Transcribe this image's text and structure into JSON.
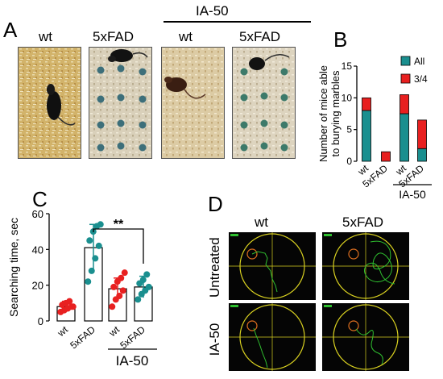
{
  "panel_a": {
    "letter": "A",
    "group_label": "IA-50",
    "photos": [
      {
        "label": "wt",
        "kind": "wt"
      },
      {
        "label": "5xFAD",
        "kind": "fad"
      },
      {
        "label": "wt",
        "kind": "wt"
      },
      {
        "label": "5xFAD",
        "kind": "fad"
      }
    ]
  },
  "panel_b": {
    "letter": "B",
    "group_label": "IA-50",
    "colors": {
      "all": "#1a8f8f",
      "three_quarter": "#e82020"
    }
  },
  "panel_c": {
    "letter": "C",
    "group_label": "IA-50",
    "significance": "**",
    "colors": {
      "wt": "#e82020",
      "fad": "#1a8f8f"
    }
  },
  "panel_d": {
    "letter": "D",
    "col_labels": [
      "wt",
      "5xFAD"
    ],
    "row_labels": [
      "Untreated",
      "IA-50"
    ],
    "colors": {
      "arena": "#d8d020",
      "path": "#2fbf2f",
      "target": "#e07020",
      "background": "#050505"
    }
  },
  "chart_data": [
    {
      "type": "bar",
      "panel": "B",
      "title": "",
      "xlabel": "",
      "ylabel": "Number of mice able to burying marbles",
      "categories": [
        "wt",
        "5xFAD",
        "wt",
        "5xFAD"
      ],
      "ylim": [
        0,
        15
      ],
      "yticks": [
        0,
        5,
        10,
        15
      ],
      "stacked": true,
      "legend_position": "top-right",
      "series": [
        {
          "name": "All",
          "values": [
            8,
            0,
            7.5,
            2
          ]
        },
        {
          "name": "3/4",
          "values": [
            2,
            1.5,
            3,
            4.5
          ]
        }
      ]
    },
    {
      "type": "bar",
      "panel": "C",
      "title": "",
      "xlabel": "",
      "ylabel": "Searching time, sec",
      "categories": [
        "wt",
        "5xFAD",
        "wt",
        "5xFAD"
      ],
      "ylim": [
        0,
        60
      ],
      "yticks": [
        0,
        20,
        40,
        60
      ],
      "values": [
        8,
        41,
        18,
        19
      ],
      "errors": [
        3,
        13,
        6,
        6
      ],
      "points": [
        [
          5,
          6,
          7,
          8,
          9,
          10,
          11,
          8
        ],
        [
          22,
          28,
          35,
          42,
          45,
          50,
          53,
          54
        ],
        [
          8,
          12,
          14,
          17,
          19,
          22,
          24,
          27
        ],
        [
          12,
          15,
          17,
          19,
          21,
          23,
          26
        ]
      ]
    }
  ]
}
